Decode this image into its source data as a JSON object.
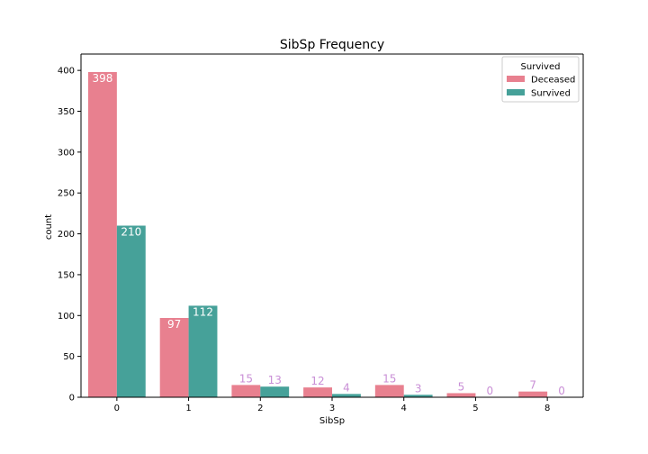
{
  "chart_data": {
    "type": "bar",
    "title": "SibSp Frequency",
    "xlabel": "SibSp",
    "ylabel": "count",
    "categories": [
      "0",
      "1",
      "2",
      "3",
      "4",
      "5",
      "8"
    ],
    "series": [
      {
        "name": "Deceased",
        "values": [
          398,
          97,
          15,
          12,
          15,
          5,
          7
        ],
        "color": "#e8808f"
      },
      {
        "name": "Survived",
        "values": [
          210,
          112,
          13,
          4,
          3,
          0,
          0
        ],
        "color": "#46a199"
      }
    ],
    "ylim": [
      0,
      420
    ],
    "yticks": [
      0,
      50,
      100,
      150,
      200,
      250,
      300,
      350,
      400
    ],
    "grid": false,
    "legend": {
      "title": "Survived",
      "placement": "top-right"
    },
    "label_colors": {
      "inside": "#ffffff",
      "above": "#c98fd6"
    }
  }
}
